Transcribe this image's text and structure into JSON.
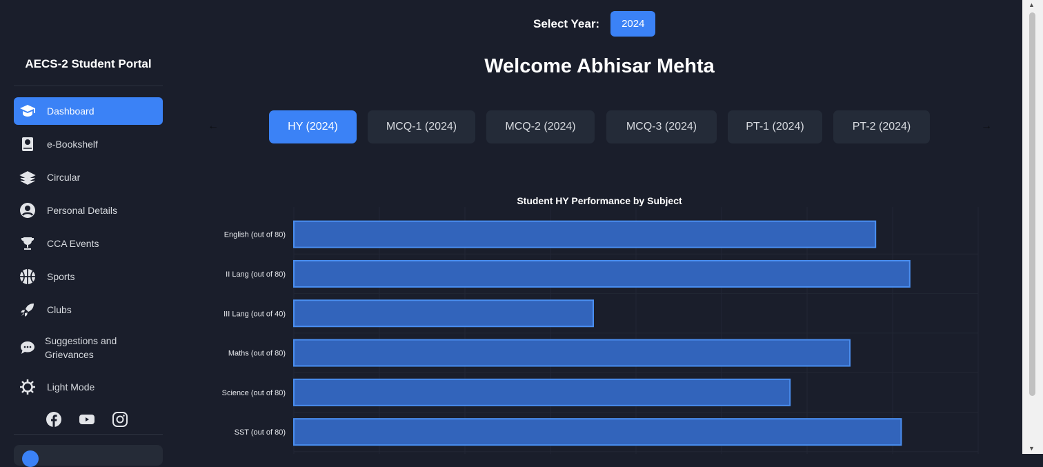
{
  "sidebar": {
    "brand": "AECS-2 Student Portal",
    "items": [
      {
        "label": "Dashboard",
        "icon": "graduation-cap-icon",
        "active": true
      },
      {
        "label": "e-Bookshelf",
        "icon": "book-globe-icon"
      },
      {
        "label": "Circular",
        "icon": "newspaper-stack-icon"
      },
      {
        "label": "Personal Details",
        "icon": "user-circle-icon"
      },
      {
        "label": "CCA Events",
        "icon": "trophy-icon"
      },
      {
        "label": "Sports",
        "icon": "basketball-icon"
      },
      {
        "label": "Clubs",
        "icon": "rocket-icon"
      },
      {
        "label": "Suggestions and Grievances",
        "icon": "chat-bubble-icon"
      },
      {
        "label": "Light Mode",
        "icon": "sun-icon"
      }
    ],
    "social": [
      "facebook-icon",
      "youtube-icon",
      "instagram-icon"
    ]
  },
  "header": {
    "year_label": "Select Year:",
    "year_value": "2024",
    "welcome": "Welcome Abhisar Mehta"
  },
  "tabs": [
    {
      "label": "HY (2024)",
      "active": true
    },
    {
      "label": "MCQ-1 (2024)"
    },
    {
      "label": "MCQ-2 (2024)"
    },
    {
      "label": "MCQ-3 (2024)"
    },
    {
      "label": "PT-1 (2024)"
    },
    {
      "label": "PT-2 (2024)"
    }
  ],
  "colors": {
    "accent": "#3b82f6",
    "bar_fill": "#3264bb",
    "bar_border": "#4a8ef0",
    "background": "#1a1e2b"
  },
  "chart_data": {
    "type": "bar",
    "orientation": "horizontal",
    "title": "Student HY Performance by Subject",
    "categories": [
      "English (out of 80)",
      "II Lang (out of 80)",
      "III Lang (out of 40)",
      "Maths (out of 80)",
      "Science (out of 80)",
      "SST (out of 80)"
    ],
    "values": [
      68,
      72,
      35,
      65,
      58,
      71
    ],
    "xlim": [
      0,
      80
    ],
    "grid": true
  }
}
